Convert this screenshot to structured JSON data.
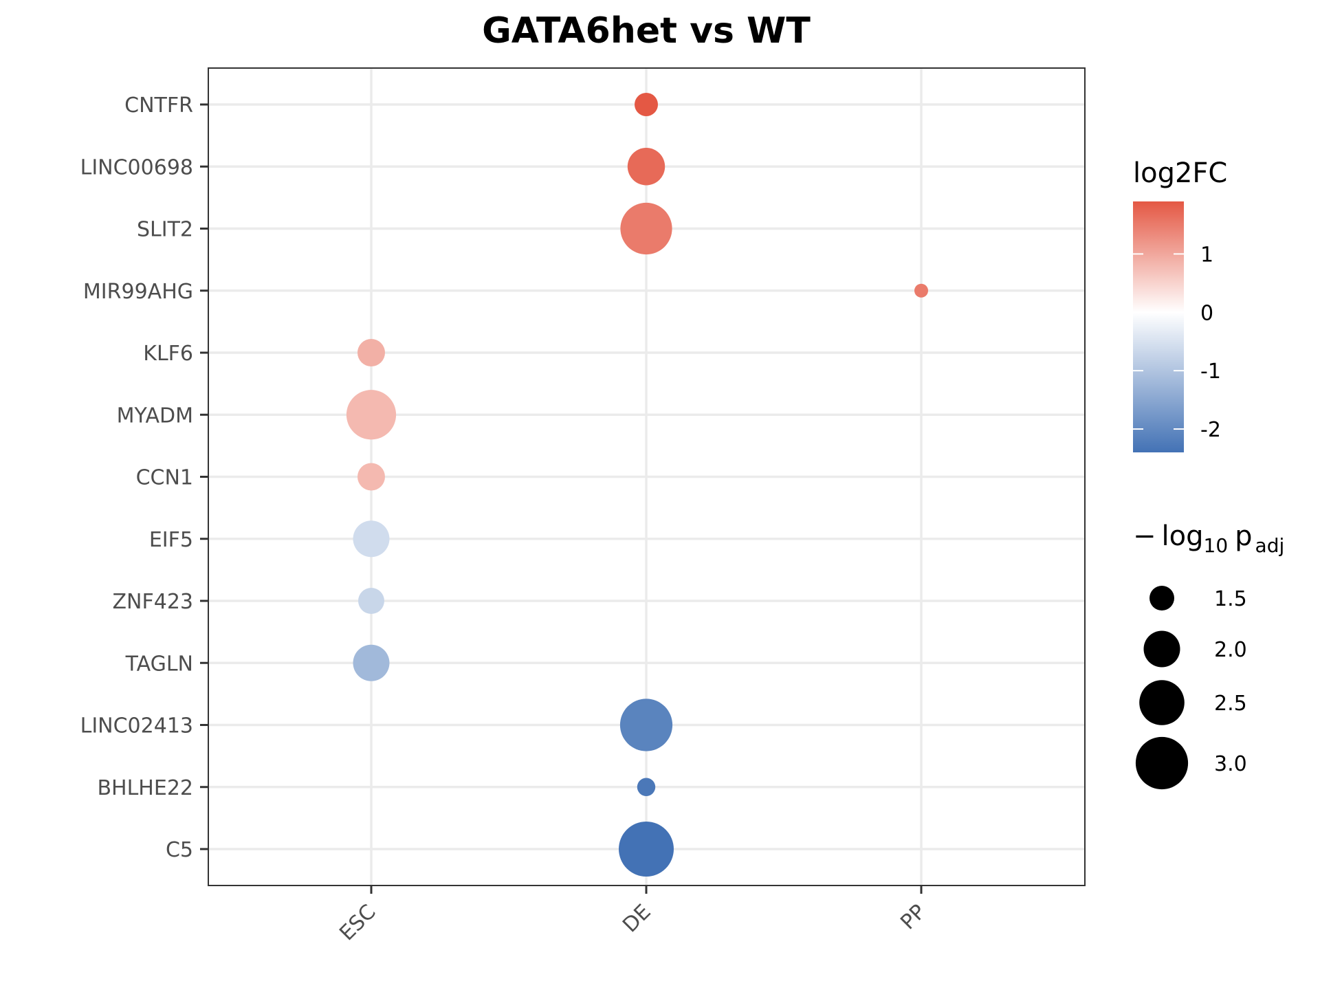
{
  "chart_data": {
    "type": "scatter",
    "title": "GATA6het vs WT",
    "xlabel": "",
    "ylabel": "",
    "x_categories": [
      "ESC",
      "DE",
      "PP"
    ],
    "y_categories": [
      "CNTFR",
      "LINC00698",
      "SLIT2",
      "MIR99AHG",
      "KLF6",
      "MYADM",
      "CCN1",
      "EIF5",
      "ZNF423",
      "TAGLN",
      "LINC02413",
      "BHLHE22",
      "C5"
    ],
    "points": [
      {
        "gene": "CNTFR",
        "stage": "DE",
        "log2FC": 1.9,
        "neglog10padj": 1.45
      },
      {
        "gene": "LINC00698",
        "stage": "DE",
        "log2FC": 1.7,
        "neglog10padj": 2.05
      },
      {
        "gene": "SLIT2",
        "stage": "DE",
        "log2FC": 1.5,
        "neglog10padj": 2.95
      },
      {
        "gene": "MIR99AHG",
        "stage": "PP",
        "log2FC": 1.5,
        "neglog10padj": 1.2
      },
      {
        "gene": "KLF6",
        "stage": "ESC",
        "log2FC": 0.9,
        "neglog10padj": 1.6
      },
      {
        "gene": "MYADM",
        "stage": "ESC",
        "log2FC": 0.8,
        "neglog10padj": 2.8
      },
      {
        "gene": "CCN1",
        "stage": "ESC",
        "log2FC": 0.8,
        "neglog10padj": 1.6
      },
      {
        "gene": "EIF5",
        "stage": "ESC",
        "log2FC": -0.6,
        "neglog10padj": 2.0
      },
      {
        "gene": "ZNF423",
        "stage": "ESC",
        "log2FC": -0.7,
        "neglog10padj": 1.55
      },
      {
        "gene": "TAGLN",
        "stage": "ESC",
        "log2FC": -1.2,
        "neglog10padj": 2.0
      },
      {
        "gene": "LINC02413",
        "stage": "DE",
        "log2FC": -2.1,
        "neglog10padj": 3.0
      },
      {
        "gene": "BHLHE22",
        "stage": "DE",
        "log2FC": -2.3,
        "neglog10padj": 1.3
      },
      {
        "gene": "C5",
        "stage": "DE",
        "log2FC": -2.4,
        "neglog10padj": 3.2
      }
    ],
    "color_legend": {
      "title": "log2FC",
      "ticks": [
        -2,
        -1,
        0,
        1
      ],
      "tick_labels": [
        "-2",
        "-1",
        "0",
        "1"
      ],
      "range": [
        -2.4,
        1.9
      ],
      "low_color": "#4372b5",
      "mid_color": "#ffffff",
      "high_color": "#e45844"
    },
    "size_legend": {
      "title_parts": [
        "−",
        "log",
        "10",
        "p",
        "adj"
      ],
      "values": [
        1.5,
        2.0,
        2.5,
        3.0
      ],
      "labels": [
        "1.5",
        "2.0",
        "2.5",
        "3.0"
      ],
      "size_range": [
        1.2,
        3.2
      ]
    },
    "grid": true,
    "legend_position": "right"
  }
}
